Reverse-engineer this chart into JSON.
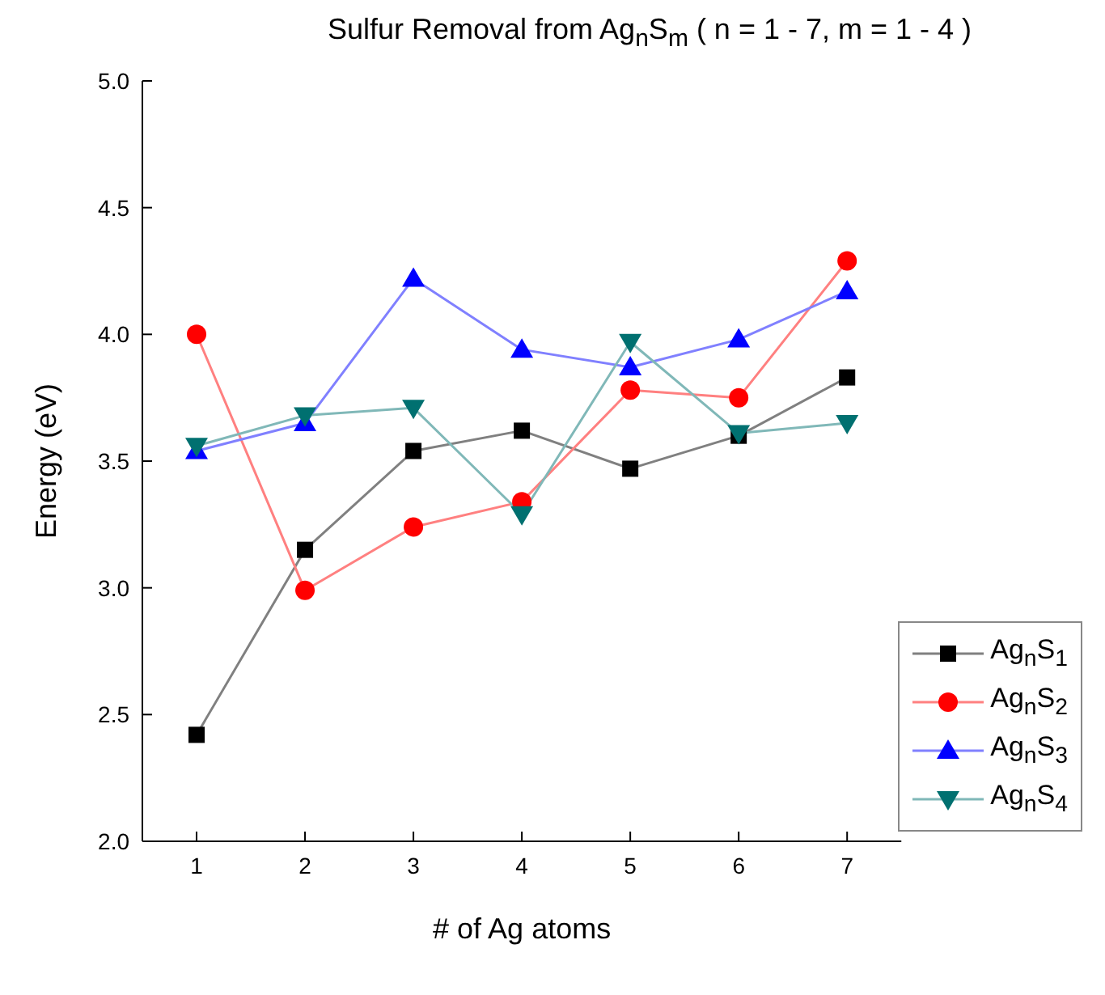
{
  "chart_data": {
    "type": "line",
    "title": "Sulfur Removal from Ag$_{n}$S$_{m}$  ( n = 1 - 7, m = 1 - 4 )",
    "xlabel": "# of Ag atoms",
    "ylabel": "Energy (eV)",
    "x": [
      1,
      2,
      3,
      4,
      5,
      6,
      7
    ],
    "xlim": [
      0.5,
      7.5
    ],
    "xticks": [
      1,
      2,
      3,
      4,
      5,
      6,
      7
    ],
    "ylim": [
      2.0,
      5.0
    ],
    "yticks": [
      {
        "value": 2.0,
        "label": "2.0"
      },
      {
        "value": 2.5,
        "label": "2.5"
      },
      {
        "value": 3.0,
        "label": "3.0"
      },
      {
        "value": 3.5,
        "label": "3.5"
      },
      {
        "value": 4.0,
        "label": "4.0"
      },
      {
        "value": 4.5,
        "label": "4.5"
      },
      {
        "value": 5.0,
        "label": "5.0"
      }
    ],
    "legend": "bottom right",
    "line_style": "solid",
    "series": [
      {
        "name": "Ag$_{n}$S$_{1}$",
        "color": "#000000",
        "marker": "square",
        "values": [
          2.42,
          3.15,
          3.54,
          3.62,
          3.47,
          3.6,
          3.83
        ]
      },
      {
        "name": "Ag$_{n}$S$_{2}$",
        "color": "#ff0000",
        "marker": "circle",
        "values": [
          4.0,
          2.99,
          3.24,
          3.34,
          3.78,
          3.75,
          4.29
        ]
      },
      {
        "name": "Ag$_{n}$S$_{3}$",
        "color": "#0000ff",
        "marker": "triangle",
        "values": [
          3.54,
          3.65,
          4.22,
          3.94,
          3.87,
          3.98,
          4.17
        ]
      },
      {
        "name": "Ag$_{n}$S$_{4}$",
        "color": "#007070",
        "marker": "triangle_down",
        "values": [
          3.56,
          3.68,
          3.71,
          3.29,
          3.97,
          3.61,
          3.65
        ]
      }
    ]
  }
}
